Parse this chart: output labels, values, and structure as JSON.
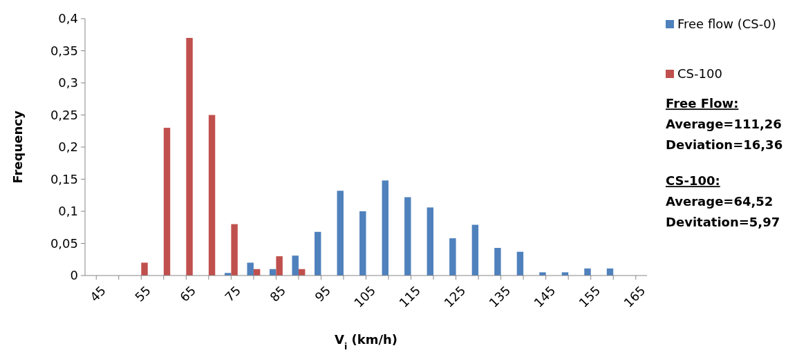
{
  "chart_data": {
    "type": "bar",
    "xlabel": "V$_{i}$ (km/h)",
    "ylabel": "Frequency",
    "categories": [
      "45",
      null,
      "55",
      null,
      "65",
      null,
      "75",
      null,
      "85",
      null,
      "95",
      null,
      "105",
      null,
      "115",
      null,
      "125",
      null,
      "135",
      null,
      "145",
      null,
      "155",
      null,
      "165"
    ],
    "series": [
      {
        "name": "Free flow (CS-0)",
        "color": "#4f81bd",
        "values": [
          null,
          null,
          null,
          null,
          null,
          null,
          0.004,
          0.02,
          0.01,
          0.031,
          0.068,
          0.132,
          0.1,
          0.148,
          0.122,
          0.106,
          0.058,
          0.079,
          0.043,
          0.037,
          0.005,
          0.005,
          0.011,
          0.011,
          null
        ]
      },
      {
        "name": "CS-100",
        "color": "#c0504d",
        "values": [
          null,
          null,
          0.02,
          0.23,
          0.37,
          0.25,
          0.08,
          0.01,
          0.03,
          0.01,
          null,
          null,
          null,
          null,
          null,
          null,
          null,
          null,
          null,
          null,
          null,
          null,
          null,
          null,
          null
        ]
      }
    ],
    "ylim": [
      0,
      0.4
    ],
    "yticks": [
      {
        "value": 0,
        "label": "0"
      },
      {
        "value": 0.05,
        "label": "0,05"
      },
      {
        "value": 0.1,
        "label": "0,1"
      },
      {
        "value": 0.15,
        "label": "0,15"
      },
      {
        "value": 0.2,
        "label": "0,2"
      },
      {
        "value": 0.25,
        "label": "0,25"
      },
      {
        "value": 0.3,
        "label": "0,3"
      },
      {
        "value": 0.35,
        "label": "0,35"
      },
      {
        "value": 0.4,
        "label": "0,4"
      }
    ],
    "grid": false,
    "legend": "right",
    "annotations": [
      "Free Flow:",
      "Average=111,26",
      "Deviation=16,36",
      "CS-100:",
      "Average=64,52",
      "Devitation=5,97"
    ]
  }
}
